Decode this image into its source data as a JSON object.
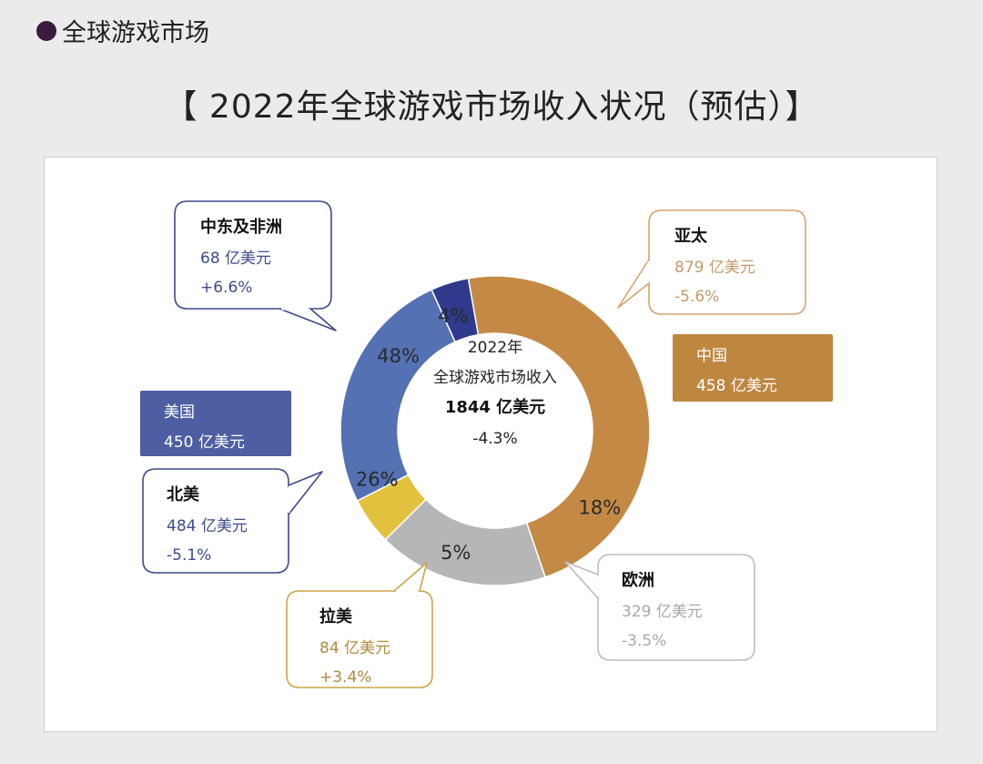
{
  "header": {
    "section_title": "全球游戏市场"
  },
  "title": "【 2022年全球游戏市场收入状况（预估）】",
  "center": {
    "line1": "2022年",
    "line2": "全球游戏市场收入",
    "total": "1844 亿美元",
    "change": "-4.3%"
  },
  "colors": {
    "asia_pacific": "#c48a45",
    "europe": "#b6b6b6",
    "latin_america": "#e2c13f",
    "north_america": "#5371b3",
    "middle_east_africa": "#2f3a8c",
    "usa_box": "#4d5ea3",
    "china_box": "#be8740",
    "mea_border": "#3d4b8c",
    "na_border": "#3d4b8c",
    "latam_border": "#caa548",
    "europe_border": "#bdbdbd",
    "asia_border": "#d7a370"
  },
  "chart_data": {
    "type": "pie",
    "donut": true,
    "title": "【 2022年全球游戏市场收入状况（预估）】",
    "total_label": "1844 亿美元",
    "total_change": "-4.3%",
    "slices": [
      {
        "name": "亚太",
        "percent": 48,
        "percent_label": "48%",
        "value_label": "879 亿美元",
        "change": "-5.6%"
      },
      {
        "name": "欧洲",
        "percent": 18,
        "percent_label": "18%",
        "value_label": "329 亿美元",
        "change": "-3.5%"
      },
      {
        "name": "拉美",
        "percent": 5,
        "percent_label": "5%",
        "value_label": "84 亿美元",
        "change": "+3.4%"
      },
      {
        "name": "北美",
        "percent": 26,
        "percent_label": "26%",
        "value_label": "484 亿美元",
        "change": "-5.1%"
      },
      {
        "name": "中东及非洲",
        "percent": 4,
        "percent_label": "4%",
        "value_label": "68 亿美元",
        "change": "+6.6%"
      }
    ],
    "sub_boxes": [
      {
        "name": "中国",
        "value_label": "458 亿美元",
        "parent": "亚太"
      },
      {
        "name": "美国",
        "value_label": "450 亿美元",
        "parent": "北美"
      }
    ]
  }
}
